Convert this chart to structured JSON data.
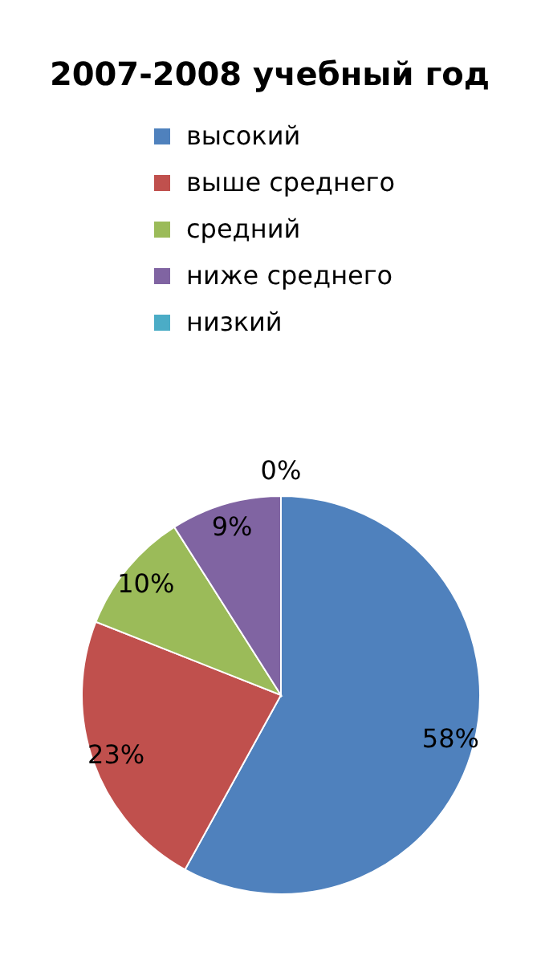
{
  "chart_data": {
    "type": "pie",
    "title": "2007-2008 учебный год",
    "categories": [
      "высокий",
      "выше среднего",
      "средний",
      "ниже среднего",
      "низкий"
    ],
    "values": [
      58,
      23,
      10,
      9,
      0
    ],
    "value_labels": [
      "58%",
      "23%",
      "10%",
      "9%",
      "0%"
    ],
    "colors": [
      "#4f81bd",
      "#c0504d",
      "#9bbb59",
      "#8064a2",
      "#4bacc6"
    ],
    "legend": "top"
  }
}
